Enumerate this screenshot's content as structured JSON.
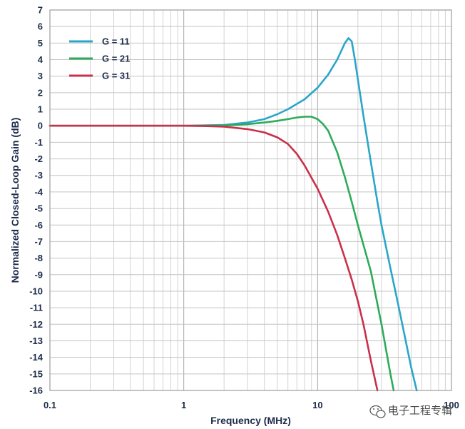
{
  "chart_data": {
    "type": "line",
    "xlabel": "Frequency (MHz)",
    "ylabel": "Normalized Closed-Loop Gain (dB)",
    "xscale": "log",
    "xlim": [
      0.1,
      100
    ],
    "ylim": [
      -16,
      7
    ],
    "xticks": [
      0.1,
      1,
      10,
      100
    ],
    "xtick_labels": [
      "0.1",
      "1",
      "10",
      "100"
    ],
    "yticks": [
      7,
      6,
      5,
      4,
      3,
      2,
      1,
      0,
      -1,
      -2,
      -3,
      -4,
      -5,
      -6,
      -7,
      -8,
      -9,
      -10,
      -11,
      -12,
      -13,
      -14,
      -15,
      -16
    ],
    "grid": true,
    "legend": "top-left",
    "series": [
      {
        "name": "G = 11",
        "color": "#2aa6c9",
        "x": [
          0.1,
          0.5,
          1,
          2,
          3,
          4,
          5,
          6,
          8,
          10,
          12,
          14,
          16,
          17,
          18,
          19,
          20,
          22,
          25,
          28,
          30,
          35,
          40,
          45,
          50,
          55
        ],
        "y": [
          0,
          0,
          0,
          0.05,
          0.2,
          0.4,
          0.7,
          1.0,
          1.6,
          2.3,
          3.1,
          4.0,
          5.0,
          5.3,
          5.1,
          4.0,
          2.8,
          0.6,
          -2.2,
          -4.6,
          -6.0,
          -8.6,
          -10.8,
          -12.8,
          -14.6,
          -16
        ]
      },
      {
        "name": "G = 21",
        "color": "#2dab5a",
        "x": [
          0.1,
          0.5,
          1,
          2,
          3,
          4,
          5,
          6,
          7,
          8,
          9,
          10,
          11,
          12,
          14,
          16,
          18,
          20,
          25,
          30,
          35,
          37
        ],
        "y": [
          0,
          0,
          0,
          0.02,
          0.1,
          0.2,
          0.3,
          0.4,
          0.5,
          0.55,
          0.55,
          0.4,
          0.1,
          -0.3,
          -1.6,
          -3.1,
          -4.6,
          -6.0,
          -8.8,
          -12.0,
          -15.0,
          -16
        ]
      },
      {
        "name": "G = 31",
        "color": "#c9304a",
        "x": [
          0.1,
          0.5,
          1,
          1.5,
          2,
          3,
          4,
          5,
          6,
          7,
          8,
          10,
          12,
          14,
          16,
          18,
          20,
          22,
          25,
          28
        ],
        "y": [
          0,
          0,
          0,
          -0.02,
          -0.05,
          -0.2,
          -0.4,
          -0.7,
          -1.1,
          -1.7,
          -2.4,
          -3.8,
          -5.2,
          -6.6,
          -8.0,
          -9.3,
          -10.6,
          -12.0,
          -14.2,
          -16
        ]
      }
    ]
  },
  "watermark": {
    "icon": "wechat-icon",
    "text": "电子工程专辑"
  }
}
